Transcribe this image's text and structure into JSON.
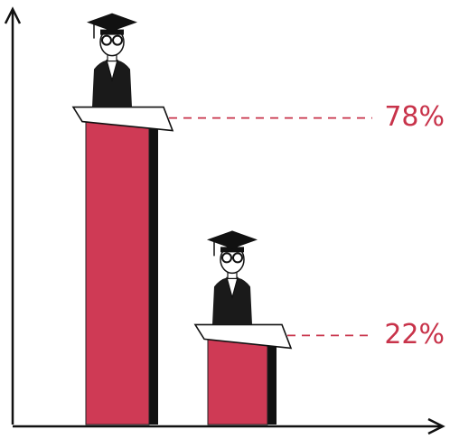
{
  "chart_data": {
    "type": "bar",
    "categories": [
      null,
      null
    ],
    "values": [
      78,
      22
    ],
    "value_labels": [
      "78%",
      "22%"
    ],
    "color": "#cf3a55",
    "ylim": [
      0,
      100
    ]
  }
}
